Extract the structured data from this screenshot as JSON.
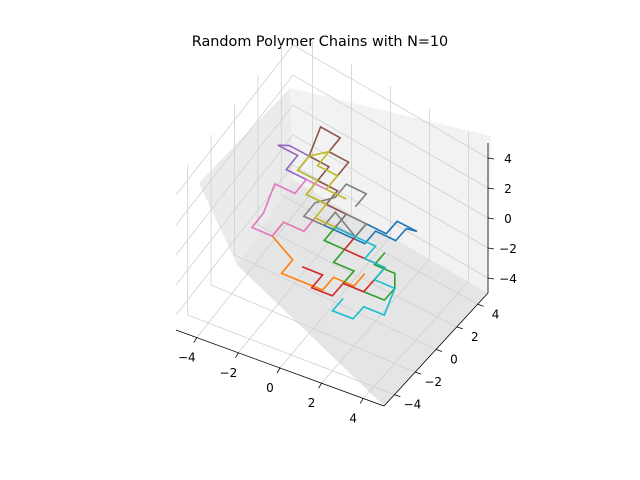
{
  "chart_data": {
    "type": "line",
    "projection": "3d",
    "title": "Random Polymer Chains with N=10",
    "xlabel": "",
    "ylabel": "",
    "zlabel": "",
    "xlim": [
      -5,
      5
    ],
    "ylim": [
      -5,
      5
    ],
    "zlim": [
      -5,
      5
    ],
    "xticks": [
      "−4",
      "−2",
      "0",
      "2",
      "4"
    ],
    "yticks": [
      "−4",
      "−2",
      "0",
      "2",
      "4"
    ],
    "zticks": [
      "−4",
      "−2",
      "0",
      "2",
      "4"
    ],
    "grid": true,
    "legend": "none",
    "series": [
      {
        "color": "#1f77b4",
        "x": [
          0,
          1,
          1,
          2,
          2,
          3,
          3,
          3,
          2,
          2,
          1,
          0
        ],
        "y": [
          0,
          0,
          1,
          1,
          2,
          2,
          1,
          0,
          0,
          -1,
          -1,
          -1
        ],
        "z": [
          0,
          0,
          0,
          0,
          0,
          0,
          1,
          1,
          1,
          1,
          1,
          1
        ]
      },
      {
        "color": "#ff7f0e",
        "x": [
          0,
          -1,
          -1,
          -2,
          -2,
          -1,
          -1,
          0,
          1,
          1,
          2,
          2
        ],
        "y": [
          0,
          0,
          -1,
          -1,
          -2,
          -2,
          -3,
          -3,
          -3,
          -2,
          -2,
          -1
        ],
        "z": [
          0,
          0,
          0,
          0,
          0,
          -1,
          -1,
          -1,
          -1,
          -1,
          -1,
          -1
        ]
      },
      {
        "color": "#2ca02c",
        "x": [
          0,
          0,
          1,
          1,
          2,
          2,
          3,
          4,
          4,
          4,
          3,
          3
        ],
        "y": [
          0,
          -1,
          -1,
          -2,
          -2,
          -3,
          -3,
          -3,
          -2,
          -2,
          -2,
          -1
        ],
        "z": [
          0,
          0,
          0,
          0,
          0,
          0,
          0,
          0,
          0,
          1,
          1,
          1
        ]
      },
      {
        "color": "#d62728",
        "x": [
          0,
          1,
          1,
          2,
          3,
          3,
          3,
          2,
          2,
          1,
          1,
          0
        ],
        "y": [
          0,
          0,
          -1,
          -1,
          -1,
          -2,
          -3,
          -3,
          -4,
          -4,
          -3,
          -3
        ],
        "z": [
          0,
          0,
          0,
          0,
          0,
          0,
          0,
          0,
          0,
          0,
          0,
          0
        ]
      },
      {
        "color": "#9467bd",
        "x": [
          0,
          0,
          -1,
          -2,
          -2,
          -3,
          -3,
          -4,
          -4,
          -3,
          -3,
          -2
        ],
        "y": [
          0,
          1,
          1,
          1,
          2,
          2,
          3,
          3,
          2,
          2,
          1,
          1
        ],
        "z": [
          0,
          0,
          0,
          0,
          0,
          0,
          0,
          0,
          1,
          1,
          1,
          1
        ]
      },
      {
        "color": "#8c564b",
        "x": [
          0,
          0,
          -1,
          -1,
          -2,
          -2,
          -3,
          -3,
          -2,
          -2,
          -1,
          -1
        ],
        "y": [
          0,
          1,
          1,
          2,
          2,
          3,
          3,
          4,
          4,
          3,
          3,
          2
        ],
        "z": [
          0,
          0,
          0,
          0,
          0,
          0,
          0,
          1,
          1,
          1,
          1,
          1
        ]
      },
      {
        "color": "#e377c2",
        "x": [
          0,
          -1,
          -1,
          -2,
          -2,
          -3,
          -3,
          -3,
          -2,
          -2,
          -1,
          -1
        ],
        "y": [
          0,
          0,
          -1,
          -1,
          -2,
          -2,
          -1,
          0,
          0,
          1,
          1,
          2
        ],
        "z": [
          0,
          0,
          0,
          0,
          0,
          0,
          0,
          1,
          1,
          1,
          1,
          1
        ]
      },
      {
        "color": "#7f7f7f",
        "x": [
          0,
          0,
          1,
          1,
          0,
          0,
          -1,
          -1,
          0,
          0,
          1,
          1
        ],
        "y": [
          0,
          1,
          1,
          0,
          0,
          -1,
          -1,
          0,
          0,
          1,
          1,
          0
        ],
        "z": [
          0,
          0,
          0,
          0,
          1,
          1,
          1,
          1,
          2,
          2,
          2,
          2
        ]
      },
      {
        "color": "#bcbd22",
        "x": [
          0,
          -1,
          -1,
          -2,
          -2,
          -3,
          -3,
          -2,
          -2,
          -1,
          -1,
          0
        ],
        "y": [
          0,
          0,
          1,
          1,
          2,
          2,
          3,
          3,
          2,
          2,
          1,
          1
        ],
        "z": [
          0,
          0,
          0,
          0,
          0,
          0,
          0,
          1,
          1,
          1,
          1,
          1
        ]
      },
      {
        "color": "#17becf",
        "x": [
          0,
          1,
          2,
          2,
          3,
          3,
          4,
          4,
          3,
          3,
          2,
          2
        ],
        "y": [
          0,
          0,
          0,
          -1,
          -1,
          -2,
          -2,
          -3,
          -3,
          -4,
          -4,
          -3
        ],
        "z": [
          0,
          0,
          0,
          0,
          0,
          0,
          0,
          -1,
          -1,
          -1,
          -1,
          -1
        ]
      }
    ]
  }
}
